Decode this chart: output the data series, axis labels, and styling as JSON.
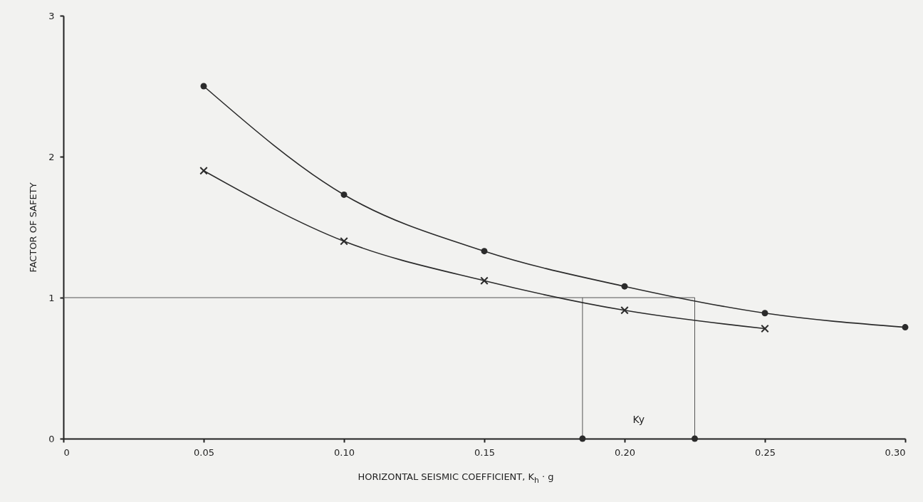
{
  "chart_data": {
    "type": "line",
    "xlabel": "HORIZONTAL SEISMIC COEFFICIENT, K$_{h}$ · g",
    "ylabel": "FACTOR OF SAFETY",
    "xlim": [
      0,
      0.3
    ],
    "ylim": [
      0,
      3
    ],
    "xticks": [
      0,
      0.05,
      {
        "value": 0.1,
        "label": "0.10"
      },
      0.15,
      {
        "value": 0.2,
        "label": "0.20"
      },
      0.25,
      {
        "value": 0.3,
        "label": "0.30"
      }
    ],
    "yticks": [
      0,
      1,
      2,
      3
    ],
    "grid": false,
    "series": [
      {
        "color": "#2b2b2b",
        "marker": "circle",
        "x": [
          0.05,
          0.1,
          0.15,
          0.2,
          0.25,
          0.3
        ],
        "values": [
          2.5,
          1.73,
          1.33,
          1.08,
          0.89,
          0.79
        ]
      },
      {
        "color": "#2b2b2b",
        "marker": "cross",
        "x": [
          0.05,
          0.1,
          0.15,
          0.2,
          0.25
        ],
        "values": [
          1.9,
          1.4,
          1.12,
          0.91,
          0.78
        ]
      },
      {
        "type": "scatter",
        "color": "#2b2b2b",
        "marker": "circle",
        "x": [
          0.185,
          0.225
        ],
        "values": [
          0,
          0
        ]
      }
    ],
    "ref_lines": [
      {
        "axis": "y",
        "value": 1,
        "color": "#555555"
      },
      {
        "axis": "x",
        "value": 0.185,
        "color": "#555555"
      },
      {
        "axis": "x",
        "value": 0.225,
        "color": "#555555"
      }
    ],
    "annotations": [
      "Ky"
    ]
  }
}
